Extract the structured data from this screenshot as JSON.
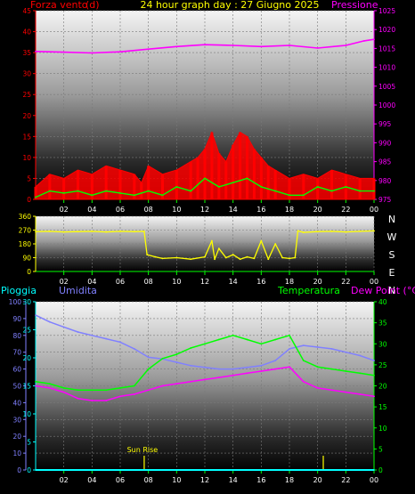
{
  "header": {
    "title": "24 hour graph day : 27 Giugno 2025",
    "left_label": "Forza vento",
    "left_unit": "(d)",
    "right_label": "Pressione"
  },
  "colors": {
    "wind_gust": "#ff0000",
    "wind_avg": "#00ff00",
    "pressure": "#ff00ff",
    "direction": "#ffff00",
    "rain": "#00ffff",
    "humidity": "#8080ff",
    "temperature": "#00ff00",
    "dewpoint": "#ff00ff",
    "left_axis": "#ff0000",
    "right_axis": "#ff00ff",
    "dir_axis": "#ffff00",
    "rain_axis": "#00ffff",
    "hum_axis": "#8080ff",
    "temp_axis": "#00ff00"
  },
  "chart_data": [
    {
      "type": "line",
      "name": "wind-pressure",
      "x_ticks": [
        "02",
        "04",
        "06",
        "08",
        "10",
        "12",
        "14",
        "16",
        "18",
        "20",
        "22",
        "00"
      ],
      "y_left_ticks": [
        "0",
        "5",
        "10",
        "15",
        "20",
        "25",
        "30",
        "35",
        "40",
        "45"
      ],
      "y_left_range": [
        0,
        45
      ],
      "y_right_ticks": [
        "975",
        "980",
        "985",
        "990",
        "995",
        "1000",
        "1005",
        "1010",
        "1015",
        "1020",
        "1025"
      ],
      "y_right_range": [
        975,
        1025
      ],
      "series": [
        {
          "key": "pressure",
          "axis": "right",
          "x": [
            0,
            2,
            4,
            6,
            8,
            10,
            12,
            14,
            16,
            18,
            20,
            22,
            23.3,
            24
          ],
          "y": [
            1014.2,
            1014,
            1013.8,
            1014.1,
            1014.8,
            1015.5,
            1016,
            1015.8,
            1015.5,
            1015.8,
            1015.1,
            1015.8,
            1017,
            1017.4
          ]
        },
        {
          "key": "wind_gust",
          "axis": "left",
          "x": [
            0,
            1,
            2,
            3,
            4,
            5,
            6,
            7,
            7.5,
            8,
            9,
            10,
            11,
            11.5,
            12,
            12.5,
            13,
            13.5,
            14,
            14.5,
            15,
            15.5,
            16,
            16.5,
            17,
            18,
            19,
            20,
            21,
            22,
            23,
            24
          ],
          "y": [
            3,
            6,
            5,
            7,
            6,
            8,
            7,
            6,
            4,
            8,
            6,
            7,
            9,
            10,
            12,
            16,
            11,
            9,
            13,
            16,
            15,
            12,
            10,
            8,
            7,
            5,
            6,
            5,
            7,
            6,
            5,
            5
          ]
        },
        {
          "key": "wind_avg",
          "axis": "left",
          "x": [
            0,
            1,
            2,
            3,
            4,
            5,
            6,
            7,
            8,
            9,
            10,
            11,
            12,
            13,
            14,
            15,
            16,
            17,
            18,
            19,
            20,
            21,
            22,
            23,
            24
          ],
          "y": [
            0.5,
            2,
            1.5,
            2,
            1,
            2,
            1.5,
            1,
            2,
            1,
            3,
            2,
            5,
            3,
            4,
            5,
            3,
            2,
            1,
            1,
            3,
            2,
            3,
            2,
            2
          ]
        }
      ]
    },
    {
      "type": "line",
      "name": "wind-direction",
      "x_ticks": [
        "02",
        "04",
        "06",
        "08",
        "10",
        "12",
        "14",
        "16",
        "18",
        "20",
        "22",
        "00"
      ],
      "y_left_ticks": [
        "0",
        "90",
        "180",
        "270",
        "360"
      ],
      "y_left_range": [
        0,
        360
      ],
      "compass_labels": [
        "N",
        "W",
        "S",
        "E",
        "N"
      ],
      "series": [
        {
          "key": "direction",
          "x": [
            0,
            1,
            2,
            3,
            4,
            5,
            6,
            7,
            7.7,
            7.9,
            8.5,
            9,
            10,
            11,
            12,
            12.5,
            12.7,
            13,
            13.5,
            14,
            14.5,
            15,
            15.5,
            16,
            16.5,
            17,
            17.5,
            18,
            18.4,
            18.6,
            19,
            20,
            21,
            22,
            23,
            24
          ],
          "y": [
            260,
            262,
            258,
            260,
            262,
            258,
            262,
            260,
            262,
            110,
            95,
            85,
            90,
            80,
            95,
            200,
            80,
            150,
            90,
            110,
            80,
            95,
            85,
            200,
            80,
            180,
            90,
            85,
            90,
            265,
            255,
            260,
            262,
            258,
            262,
            265
          ]
        }
      ]
    },
    {
      "type": "line",
      "name": "rain-humidity-temp",
      "header": {
        "rain_label": "Pioggia",
        "hum_label": "Umidita",
        "temp_label": "Temperatura",
        "dew_label": "Dew Point (°C)"
      },
      "x_ticks": [
        "02",
        "04",
        "06",
        "08",
        "10",
        "12",
        "14",
        "16",
        "18",
        "20",
        "22",
        "00"
      ],
      "y_rain_ticks": [
        "0",
        "5",
        "10",
        "15",
        "20",
        "25",
        "30"
      ],
      "y_rain_range": [
        0,
        30
      ],
      "y_hum_ticks": [
        "0",
        "10",
        "20",
        "30",
        "40",
        "50",
        "60",
        "70",
        "80",
        "90",
        "100"
      ],
      "y_hum_range": [
        0,
        100
      ],
      "y_temp_ticks": [
        "0",
        "5",
        "10",
        "15",
        "20",
        "25",
        "30",
        "35",
        "40"
      ],
      "y_temp_range": [
        0,
        40
      ],
      "annotations": [
        {
          "text": "Sun Rise",
          "x": 7.7
        }
      ],
      "markers": [
        7.7,
        20.4
      ],
      "series": [
        {
          "key": "humidity",
          "axis": "hum",
          "x": [
            0,
            1,
            2,
            3,
            4,
            5,
            6,
            7,
            8,
            9,
            10,
            11,
            12,
            13,
            14,
            15,
            16,
            17,
            18,
            19,
            20,
            21,
            22,
            23,
            24
          ],
          "y": [
            92,
            88,
            85,
            82,
            80,
            78,
            76,
            72,
            67,
            66,
            64,
            62,
            61,
            60,
            60,
            61,
            62,
            65,
            72,
            74,
            73,
            72,
            70,
            68,
            65
          ]
        },
        {
          "key": "temperature",
          "axis": "temp",
          "x": [
            0,
            1,
            2,
            3,
            4,
            5,
            6,
            7,
            8,
            9,
            10,
            11,
            12,
            13,
            14,
            15,
            16,
            17,
            18,
            19,
            20,
            21,
            22,
            23,
            24
          ],
          "y": [
            21,
            20.5,
            19.5,
            19,
            19,
            19,
            19.5,
            20,
            24,
            26.5,
            27.5,
            29,
            30,
            31,
            32,
            31,
            30,
            31,
            32,
            26,
            24.5,
            24,
            23.5,
            23,
            22.5
          ]
        },
        {
          "key": "dewpoint",
          "axis": "temp",
          "x": [
            0,
            1,
            2,
            3,
            4,
            5,
            6,
            7,
            8,
            9,
            10,
            11,
            12,
            13,
            14,
            15,
            16,
            17,
            18,
            19,
            20,
            21,
            22,
            23,
            24
          ],
          "y": [
            20,
            19.5,
            18.5,
            17,
            16.5,
            16.5,
            17.5,
            18,
            19,
            20,
            20.5,
            21,
            21.5,
            22,
            22.5,
            23,
            23.5,
            24,
            24.5,
            21,
            19.5,
            19,
            18.5,
            18,
            17.5
          ]
        },
        {
          "key": "rain",
          "axis": "rain",
          "x": [
            0,
            24
          ],
          "y": [
            0,
            0
          ]
        }
      ]
    }
  ]
}
